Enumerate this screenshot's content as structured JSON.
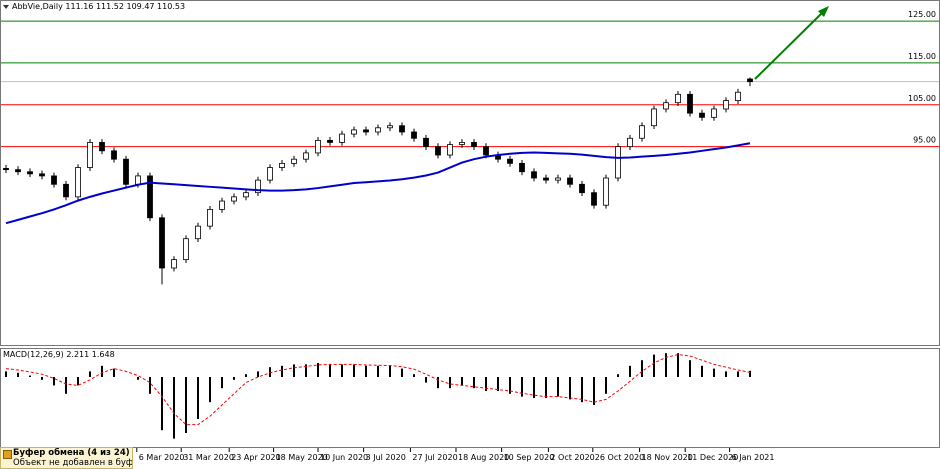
{
  "chart_data": [
    {
      "type": "candlestick",
      "title": "AbbVie,Daily",
      "open": [
        89.8,
        89.5,
        89.0,
        88.5,
        88.0,
        86.0,
        83.0,
        90.0,
        96.0,
        94.0,
        92.0,
        86.0,
        88.0,
        78.0,
        66.0,
        68.0,
        73.0,
        76.0,
        80.0,
        82.0,
        83.0,
        84.0,
        87.0,
        90.0,
        91.0,
        92.0,
        93.5,
        96.5,
        96.0,
        98.0,
        99.0,
        98.5,
        99.5,
        100.0,
        98.5,
        97.0,
        95.0,
        93.0,
        95.5,
        96.0,
        95.0,
        93.0,
        92.0,
        91.0,
        89.0,
        87.5,
        87.0,
        87.5,
        86.0,
        84.0,
        81.0,
        87.5,
        95.0,
        97.0,
        100.0,
        104.0,
        105.5,
        107.5,
        103.0,
        102.0,
        104.0,
        106.0,
        111.16
      ],
      "high": [
        90.6,
        90.3,
        89.8,
        89.3,
        88.8,
        86.8,
        90.8,
        96.8,
        96.8,
        94.8,
        92.8,
        88.8,
        88.8,
        78.8,
        68.8,
        73.8,
        76.8,
        80.8,
        82.8,
        83.8,
        84.8,
        87.8,
        90.8,
        91.8,
        92.8,
        94.3,
        97.3,
        97.3,
        98.8,
        99.8,
        99.8,
        100.3,
        100.8,
        100.8,
        99.3,
        97.8,
        95.8,
        96.3,
        96.8,
        96.8,
        95.8,
        93.8,
        92.8,
        91.8,
        89.8,
        88.3,
        88.3,
        88.3,
        86.8,
        84.8,
        88.3,
        95.8,
        97.8,
        100.8,
        104.8,
        106.3,
        108.3,
        108.3,
        103.8,
        104.8,
        106.8,
        108.8,
        111.52
      ],
      "low": [
        88.7,
        88.2,
        87.7,
        87.2,
        85.2,
        82.2,
        82.2,
        89.2,
        93.2,
        91.2,
        85.2,
        85.2,
        77.2,
        62.1,
        65.2,
        67.2,
        72.2,
        75.2,
        79.2,
        81.2,
        82.2,
        83.2,
        86.2,
        89.2,
        90.2,
        91.2,
        92.7,
        95.2,
        95.2,
        97.2,
        97.7,
        97.7,
        98.7,
        97.7,
        96.2,
        94.2,
        92.2,
        92.2,
        94.7,
        94.2,
        92.2,
        91.2,
        90.2,
        88.2,
        86.7,
        86.2,
        86.2,
        85.2,
        83.2,
        80.2,
        80.2,
        86.7,
        94.2,
        96.2,
        99.2,
        103.2,
        104.7,
        102.2,
        101.2,
        101.2,
        103.2,
        105.2,
        109.47
      ],
      "close": [
        89.5,
        89.0,
        88.5,
        88.0,
        86.0,
        83.0,
        90.0,
        96.0,
        94.0,
        92.0,
        86.0,
        88.0,
        78.0,
        66.0,
        68.0,
        73.0,
        76.0,
        80.0,
        82.0,
        83.0,
        84.0,
        87.0,
        90.0,
        91.0,
        92.0,
        93.5,
        96.5,
        96.0,
        98.0,
        99.0,
        98.5,
        99.5,
        100.0,
        98.5,
        97.0,
        95.0,
        93.0,
        95.5,
        96.0,
        95.0,
        93.0,
        92.0,
        91.0,
        89.0,
        87.5,
        87.0,
        87.5,
        86.0,
        84.0,
        81.0,
        87.5,
        95.0,
        97.0,
        100.0,
        104.0,
        105.5,
        107.5,
        103.0,
        102.0,
        104.0,
        106.0,
        108.0,
        110.53
      ],
      "series": [
        {
          "color": "#0000cc",
          "values": [
            76.7,
            77.5,
            78.3,
            79.1,
            80.0,
            81.0,
            82.1,
            83.0,
            83.8,
            84.5,
            85.2,
            85.9,
            86.4,
            86.2,
            86.0,
            85.8,
            85.6,
            85.4,
            85.2,
            85.0,
            84.8,
            84.6,
            84.5,
            84.5,
            84.6,
            84.8,
            85.1,
            85.5,
            85.9,
            86.3,
            86.5,
            86.7,
            86.9,
            87.2,
            87.6,
            88.1,
            88.8,
            90.0,
            91.2,
            92.0,
            92.6,
            93.0,
            93.3,
            93.5,
            93.6,
            93.5,
            93.4,
            93.3,
            93.1,
            92.8,
            92.5,
            92.3,
            92.4,
            92.6,
            92.8,
            93.0,
            93.3,
            93.6,
            94.0,
            94.4,
            94.8,
            95.3,
            95.8
          ]
        }
      ],
      "ylim": [
        47.6,
        129.8
      ],
      "yticks": [
        {
          "value": 125,
          "label": "125.00",
          "color": "#008000"
        },
        {
          "value": 115,
          "label": "115.00",
          "color": "#008000"
        },
        {
          "value": 105,
          "label": "105.00",
          "color": "#ff0000"
        },
        {
          "value": 95,
          "label": "95.00",
          "color": "#ff0000"
        }
      ]
    },
    {
      "type": "macd",
      "title": "MACD(12,26,9)",
      "series": [
        {
          "color": "#000000",
          "values": [
            2,
            1.5,
            0.5,
            -1,
            -3,
            -6,
            -3,
            2,
            4,
            3,
            0,
            -1,
            -6,
            -19,
            -22,
            -20,
            -15,
            -9,
            -4,
            -1,
            1,
            2,
            3.5,
            4,
            4.5,
            4.5,
            5,
            4.5,
            4.5,
            4.5,
            4,
            4,
            4,
            3,
            1,
            -2,
            -4,
            -4,
            -3,
            -4,
            -5,
            -5,
            -6,
            -7,
            -7.5,
            -7.5,
            -7,
            -8,
            -9,
            -10,
            -6,
            1,
            4,
            6,
            8,
            8.5,
            8.5,
            6,
            4,
            3,
            2,
            2,
            2.211
          ]
        },
        {
          "color": "#ff0000",
          "values": [
            3,
            2.5,
            1.8,
            1,
            -0.5,
            -2.5,
            -3,
            -1,
            1.5,
            3,
            2,
            0.5,
            -2,
            -7,
            -13,
            -17,
            -17,
            -14,
            -10,
            -6,
            -2,
            0,
            1.5,
            2.5,
            3.3,
            3.8,
            4.3,
            4.5,
            4.5,
            4.5,
            4.3,
            4.2,
            4.1,
            3.7,
            2.8,
            1,
            -1,
            -2.5,
            -3,
            -3.5,
            -4,
            -4.5,
            -5,
            -5.8,
            -6.5,
            -7,
            -7,
            -7.5,
            -8,
            -9,
            -8,
            -5,
            -1.5,
            2,
            5,
            7,
            8,
            7.5,
            6,
            4.5,
            3.5,
            2.5,
            1.648
          ]
        }
      ],
      "ylim": [
        -25,
        10
      ],
      "xticks": [
        {
          "value": 10.9,
          "label": "6 Mar 2020"
        },
        {
          "value": 14.6,
          "label": "31 Mar 2020"
        },
        {
          "value": 18.6,
          "label": "23 Apr 2020"
        },
        {
          "value": 22.3,
          "label": "18 May 2020"
        },
        {
          "value": 26,
          "label": "10 Jun 2020"
        },
        {
          "value": 29.8,
          "label": "3 Jul 2020"
        },
        {
          "value": 33.7,
          "label": "27 Jul 2020"
        },
        {
          "value": 37.5,
          "label": "18 Aug 2020"
        },
        {
          "value": 41.3,
          "label": "10 Sep 2020"
        },
        {
          "value": 45.2,
          "label": "2 Oct 2020"
        },
        {
          "value": 48.9,
          "label": "26 Oct 2020"
        },
        {
          "value": 52.8,
          "label": "18 Nov 2020"
        },
        {
          "value": 56.6,
          "label": "11 Dec 2020"
        },
        {
          "value": 60.3,
          "label": "6 Jan 2021"
        }
      ]
    }
  ],
  "clipboard": {
    "title": "Буфер обмена (4 из 24)",
    "message": "Объект не добавлен в буфер:"
  }
}
